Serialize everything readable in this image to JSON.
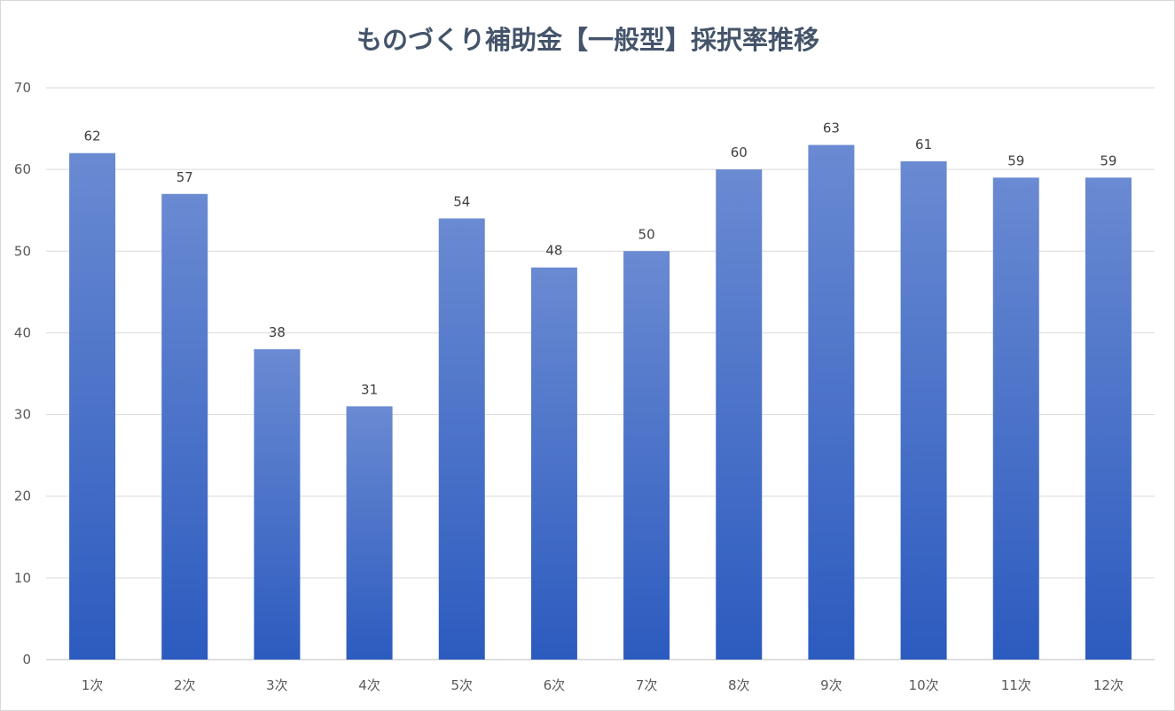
{
  "chart_data": {
    "type": "bar",
    "title": "ものづくり補助金【一般型】採択率推移",
    "categories": [
      "1次",
      "2次",
      "3次",
      "4次",
      "5次",
      "6次",
      "7次",
      "8次",
      "9次",
      "10次",
      "11次",
      "12次"
    ],
    "values": [
      62,
      57,
      38,
      31,
      54,
      48,
      50,
      60,
      63,
      61,
      59,
      59
    ],
    "ylim": [
      0,
      70
    ],
    "yticks": [
      0,
      10,
      20,
      30,
      40,
      50,
      60,
      70
    ],
    "grid": true,
    "legend": "none",
    "data_labels": true,
    "colors": {
      "bar_top": "#6a8ad2",
      "bar_bottom": "#2c5bbf",
      "grid": "#d9d9d9",
      "title": "#44546a",
      "tick": "#595959",
      "label": "#404040"
    }
  }
}
